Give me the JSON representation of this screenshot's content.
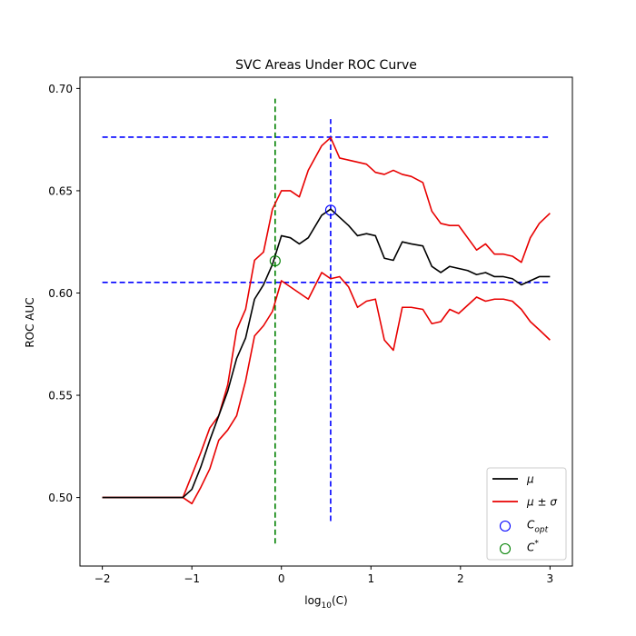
{
  "chart_data": {
    "type": "line",
    "title": "SVC Areas Under ROC Curve",
    "ylabel": "ROC AUC",
    "xlabel_main": "log",
    "xlabel_sub": "10",
    "xlabel_arg": "(C)",
    "xlim": [
      -2.25,
      3.25
    ],
    "ylim": [
      0.4665,
      0.7055
    ],
    "xticks": [
      -2,
      -1,
      0,
      1,
      2,
      3
    ],
    "yticks": [
      0.5,
      0.55,
      0.6,
      0.65,
      0.7
    ],
    "xtick_labels": [
      "−2",
      "−1",
      "0",
      "1",
      "2",
      "3"
    ],
    "ytick_labels": [
      "0.50",
      "0.55",
      "0.60",
      "0.65",
      "0.70"
    ],
    "x": [
      -2.0,
      -1.9,
      -1.8,
      -1.7,
      -1.6,
      -1.5,
      -1.4,
      -1.3,
      -1.2,
      -1.1,
      -1.0,
      -0.9,
      -0.8,
      -0.7,
      -0.6,
      -0.5,
      -0.4,
      -0.3,
      -0.2,
      -0.1,
      0.0,
      0.1,
      0.2,
      0.3,
      0.45,
      0.55,
      0.65,
      0.75,
      0.85,
      0.95,
      1.05,
      1.15,
      1.25,
      1.35,
      1.45,
      1.58,
      1.68,
      1.78,
      1.88,
      1.98,
      2.08,
      2.18,
      2.28,
      2.38,
      2.48,
      2.58,
      2.68,
      2.78,
      2.88,
      3.0
    ],
    "series": [
      {
        "name": "μ",
        "color": "#000000",
        "values": [
          0.5,
          0.5,
          0.5,
          0.5,
          0.5,
          0.5,
          0.5,
          0.5,
          0.5,
          0.5,
          0.504,
          0.515,
          0.528,
          0.54,
          0.552,
          0.568,
          0.578,
          0.597,
          0.604,
          0.614,
          0.628,
          0.627,
          0.624,
          0.627,
          0.638,
          0.641,
          0.637,
          0.633,
          0.628,
          0.629,
          0.628,
          0.617,
          0.616,
          0.625,
          0.624,
          0.623,
          0.613,
          0.61,
          0.613,
          0.612,
          0.611,
          0.609,
          0.61,
          0.608,
          0.608,
          0.607,
          0.604,
          0.606,
          0.608,
          0.608
        ]
      },
      {
        "name": "μ + σ",
        "color": "#e80000",
        "values": [
          0.5,
          0.5,
          0.5,
          0.5,
          0.5,
          0.5,
          0.5,
          0.5,
          0.5,
          0.5,
          0.511,
          0.522,
          0.534,
          0.54,
          0.555,
          0.582,
          0.592,
          0.616,
          0.62,
          0.641,
          0.65,
          0.65,
          0.647,
          0.66,
          0.672,
          0.676,
          0.666,
          0.665,
          0.664,
          0.663,
          0.659,
          0.658,
          0.66,
          0.658,
          0.657,
          0.654,
          0.64,
          0.634,
          0.633,
          0.633,
          0.627,
          0.621,
          0.624,
          0.619,
          0.619,
          0.618,
          0.615,
          0.627,
          0.634,
          0.639
        ]
      },
      {
        "name": "μ − σ",
        "color": "#e80000",
        "values": [
          0.5,
          0.5,
          0.5,
          0.5,
          0.5,
          0.5,
          0.5,
          0.5,
          0.5,
          0.5,
          0.497,
          0.505,
          0.514,
          0.528,
          0.533,
          0.54,
          0.557,
          0.579,
          0.584,
          0.591,
          0.606,
          0.603,
          0.6,
          0.597,
          0.61,
          0.607,
          0.608,
          0.603,
          0.593,
          0.596,
          0.597,
          0.577,
          0.572,
          0.593,
          0.593,
          0.592,
          0.585,
          0.586,
          0.592,
          0.59,
          0.594,
          0.598,
          0.596,
          0.597,
          0.597,
          0.596,
          0.592,
          0.586,
          0.582,
          0.577
        ]
      }
    ],
    "hlines": [
      {
        "y": 0.6762,
        "x0": -2.0,
        "x1": 3.0,
        "color": "#0000ff"
      },
      {
        "y": 0.6052,
        "x0": -2.0,
        "x1": 3.0,
        "color": "#0000ff"
      }
    ],
    "vlines": [
      {
        "x": 0.55,
        "y0": 0.4885,
        "y1": 0.685,
        "color": "#0000ff"
      },
      {
        "x": -0.07,
        "y0": 0.4775,
        "y1": 0.695,
        "color": "#008000"
      }
    ],
    "markers": [
      {
        "name": "C_opt",
        "x": 0.55,
        "y": 0.6405,
        "color": "#0000ff"
      },
      {
        "name": "C*",
        "x": -0.07,
        "y": 0.6157,
        "color": "#008000"
      }
    ],
    "legend": {
      "placement": "bottom-right",
      "entries": [
        {
          "kind": "line",
          "color": "#000000",
          "label": "μ"
        },
        {
          "kind": "line",
          "color": "#e80000",
          "label": "μ ± σ"
        },
        {
          "kind": "circle",
          "color": "#0000ff",
          "label_main": "C",
          "label_sub": "opt"
        },
        {
          "kind": "circle",
          "color": "#008000",
          "label_main": "C",
          "label_sup": "*"
        }
      ]
    }
  }
}
